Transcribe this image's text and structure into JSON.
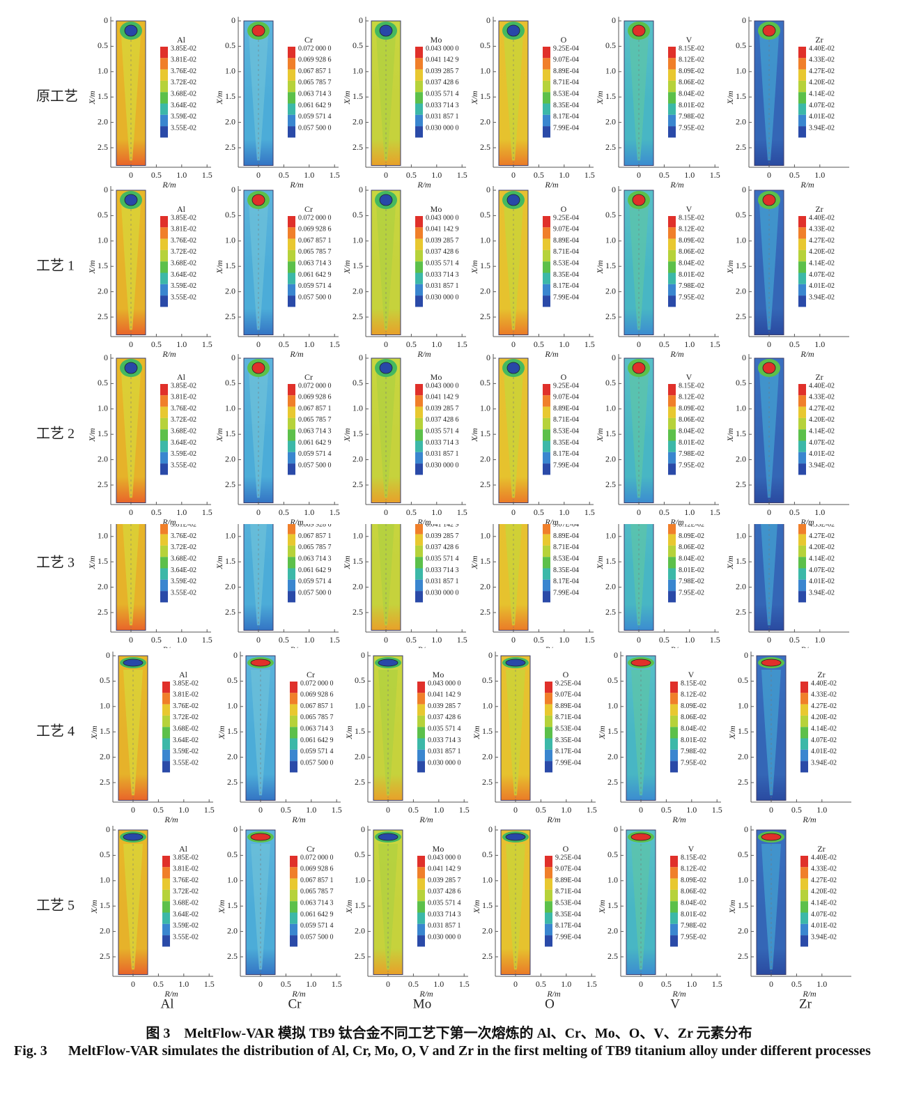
{
  "figure": {
    "rows": [
      "原工艺",
      "工艺 1",
      "工艺 2",
      "工艺 3",
      "工艺 4",
      "工艺 5"
    ],
    "axes": {
      "x_label": "X/m",
      "r_label": "R/m",
      "x_ticks": [
        "0",
        "0.5",
        "1.0",
        "1.5",
        "2.0",
        "2.5"
      ]
    },
    "columns": [
      {
        "name": "Al",
        "r_ticks": [
          "0",
          "0.5",
          "1.0",
          "1.5"
        ],
        "levels": [
          "3.85E-02",
          "3.81E-02",
          "3.76E-02",
          "3.72E-02",
          "3.68E-02",
          "3.64E-02",
          "3.59E-02",
          "3.55E-02"
        ]
      },
      {
        "name": "Cr",
        "r_ticks": [
          "0",
          "0.5",
          "1.0",
          "1.5"
        ],
        "levels": [
          "0.072 000 0",
          "0.069 928 6",
          "0.067 857 1",
          "0.065 785 7",
          "0.063 714 3",
          "0.061 642 9",
          "0.059 571 4",
          "0.057 500 0"
        ]
      },
      {
        "name": "Mo",
        "r_ticks": [
          "0",
          "0.5",
          "1.0",
          "1.5"
        ],
        "levels": [
          "0.043 000 0",
          "0.041 142 9",
          "0.039 285 7",
          "0.037 428 6",
          "0.035 571 4",
          "0.033 714 3",
          "0.031 857 1",
          "0.030 000 0"
        ]
      },
      {
        "name": "O",
        "r_ticks": [
          "0",
          "0.5",
          "1.0",
          "1.5"
        ],
        "levels": [
          "9.25E-04",
          "9.07E-04",
          "8.89E-04",
          "8.71E-04",
          "8.53E-04",
          "8.35E-04",
          "8.17E-04",
          "7.99E-04"
        ]
      },
      {
        "name": "V",
        "r_ticks": [
          "0",
          "0.5",
          "1.0",
          "1.5"
        ],
        "levels": [
          "8.15E-02",
          "8.12E-02",
          "8.09E-02",
          "8.06E-02",
          "8.04E-02",
          "8.01E-02",
          "7.98E-02",
          "7.95E-02"
        ]
      },
      {
        "name": "Zr",
        "r_ticks": [
          "0",
          "0.5",
          "1.0"
        ],
        "levels": [
          "4.40E-02",
          "4.33E-02",
          "4.27E-02",
          "4.20E-02",
          "4.14E-02",
          "4.07E-02",
          "4.01E-02",
          "3.94E-02"
        ]
      }
    ],
    "caption": {
      "zh": "图 3　MeltFlow-VAR 模拟 TB9 钛合金不同工艺下第一次熔炼的 Al、Cr、Mo、O、V、Zr 元素分布",
      "en_label": "Fig. 3",
      "en_text": "MeltFlow-VAR simulates the distribution of Al, Cr, Mo, O, V and Zr in the first melting of TB9 titanium alloy under different processes"
    }
  }
}
